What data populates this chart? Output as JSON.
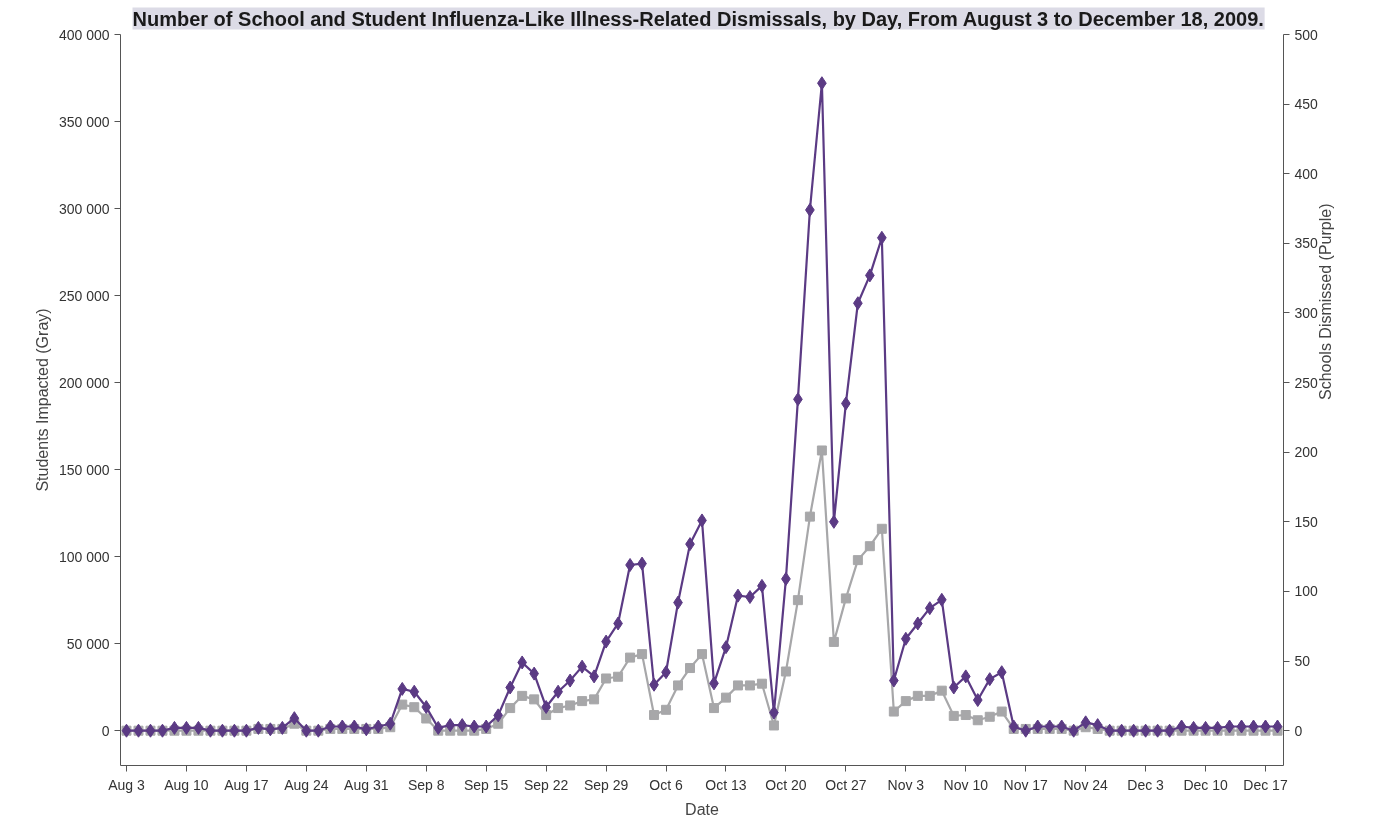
{
  "chart_data": {
    "type": "line",
    "title": "Number of School and Student Influenza-Like Illness-Related Dismissals, by Day, From August 3 to December 18, 2009.",
    "xlabel": "Date",
    "ylabel": "Students Impacted (Gray)",
    "y2label": "Schools Dismissed (Purple)",
    "categories": [
      "Aug 3",
      null,
      null,
      null,
      null,
      "Aug 10",
      null,
      null,
      null,
      null,
      "Aug 17",
      null,
      null,
      null,
      null,
      "Aug 24",
      null,
      null,
      null,
      null,
      "Aug 31",
      null,
      null,
      null,
      null,
      "Sep 8",
      null,
      null,
      null,
      null,
      "Sep 15",
      null,
      null,
      null,
      null,
      "Sep 22",
      null,
      null,
      null,
      null,
      "Sep 29",
      null,
      null,
      null,
      null,
      "Oct 6",
      null,
      null,
      null,
      null,
      "Oct 13",
      null,
      null,
      null,
      null,
      "Oct 20",
      null,
      null,
      null,
      null,
      "Oct 27",
      null,
      null,
      null,
      null,
      "Nov 3",
      null,
      null,
      null,
      null,
      "Nov 10",
      null,
      null,
      null,
      null,
      "Nov 17",
      null,
      null,
      null,
      null,
      "Nov 24",
      null,
      null,
      null,
      null,
      "Dec 3",
      null,
      null,
      null,
      null,
      "Dec 10",
      null,
      null,
      null,
      null,
      "Dec 17",
      null
    ],
    "series": [
      {
        "color": "#a7a7a9",
        "marker": "square",
        "values": [
          0,
          0,
          0,
          0,
          0,
          0,
          0,
          0,
          0,
          0,
          0,
          1000,
          1000,
          1000,
          4000,
          0,
          0,
          1000,
          1000,
          1000,
          1000,
          1000,
          2000,
          15000,
          13500,
          7000,
          0,
          0,
          0,
          0,
          1000,
          4000,
          13000,
          20000,
          18000,
          9000,
          13000,
          14500,
          17000,
          18000,
          30000,
          31000,
          42000,
          44000,
          9000,
          12000,
          26000,
          36000,
          44000,
          13000,
          19000,
          26000,
          26000,
          27000,
          3000,
          34000,
          75000,
          123000,
          161000,
          51000,
          76000,
          98000,
          106000,
          116000,
          11000,
          17000,
          20000,
          20000,
          23000,
          8500,
          9000,
          6000,
          8000,
          11000,
          1000,
          1000,
          1000,
          1000,
          1000,
          0,
          2000,
          1000,
          0,
          0,
          0,
          0,
          0,
          0,
          0,
          0,
          0,
          0,
          0,
          0,
          0,
          0,
          0
        ]
      },
      {
        "color": "#5b3a84",
        "marker": "diamond",
        "axis": "y2",
        "values": [
          0,
          0,
          0,
          0,
          2,
          2,
          2,
          0,
          0,
          0,
          0,
          2,
          1,
          2,
          9,
          0,
          0,
          3,
          3,
          3,
          1,
          3,
          5,
          30,
          28,
          17,
          2,
          4,
          4,
          3,
          3,
          11,
          31,
          49,
          41,
          17,
          28,
          36,
          46,
          39,
          64,
          77,
          119,
          120,
          33,
          42,
          92,
          134,
          151,
          34,
          60,
          97,
          96,
          104,
          13,
          109,
          238,
          374,
          465,
          150,
          235,
          307,
          327,
          354,
          36,
          66,
          77,
          88,
          94,
          31,
          39,
          22,
          37,
          42,
          3,
          0,
          3,
          3,
          3,
          0,
          6,
          4,
          0,
          0,
          0,
          0,
          0,
          0,
          3,
          2,
          2,
          2,
          3,
          3,
          3,
          3,
          3
        ]
      }
    ],
    "ylim": [
      -20000,
      400000
    ],
    "yticks": [
      0,
      {
        "value": 50000,
        "label": "50 000"
      },
      {
        "value": 100000,
        "label": "100 000"
      },
      {
        "value": 150000,
        "label": "150 000"
      },
      {
        "value": 200000,
        "label": "200 000"
      },
      {
        "value": 250000,
        "label": "250 000"
      },
      {
        "value": 300000,
        "label": "300 000"
      },
      {
        "value": 350000,
        "label": "350 000"
      },
      {
        "value": 400000,
        "label": "400 000"
      }
    ],
    "y2lim": [
      -25,
      500
    ],
    "y2ticks": [
      0,
      50,
      100,
      150,
      200,
      250,
      300,
      350,
      400,
      450,
      500
    ],
    "grid": false,
    "line_style": "solid"
  }
}
